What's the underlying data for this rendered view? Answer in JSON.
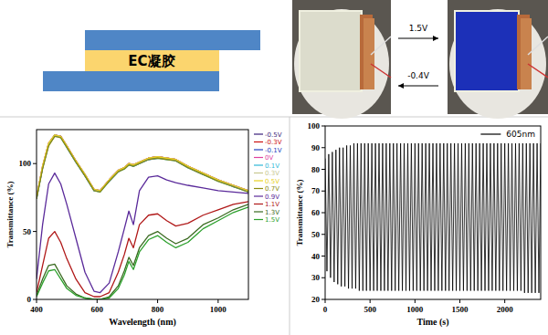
{
  "diagram": {
    "gel_label": "EC凝胶"
  },
  "photos": {
    "forward_label": "1.5V",
    "reverse_label": "-0.4V"
  },
  "chart_data": [
    {
      "type": "line",
      "x_label": "Wavelength (nm)",
      "y_label": "Transmittance (%)",
      "x": [
        400,
        420,
        440,
        460,
        480,
        500,
        530,
        560,
        590,
        610,
        640,
        670,
        690,
        705,
        720,
        740,
        770,
        800,
        830,
        860,
        900,
        950,
        1000,
        1050,
        1100
      ],
      "xlim": [
        400,
        1100
      ],
      "ylim": [
        0,
        125
      ],
      "xticks": [
        400,
        600,
        800,
        1000
      ],
      "yticks": [
        0,
        50,
        100
      ],
      "grid": false,
      "legend": "right",
      "series": [
        {
          "name": "-0.5V",
          "color": "#3a1f7a",
          "values": [
            75,
            97,
            114,
            121,
            120,
            113,
            102,
            92,
            81,
            80,
            88,
            95,
            97,
            100,
            99,
            101,
            104,
            105,
            104,
            103,
            98,
            93,
            88,
            84,
            80
          ]
        },
        {
          "name": "-0.3V",
          "color": "#cc1111",
          "values": [
            75,
            98,
            115,
            121,
            120,
            113,
            102,
            91,
            81,
            80,
            88,
            95,
            97,
            100,
            99,
            101,
            104,
            105,
            104,
            103,
            98,
            93,
            88,
            84,
            80
          ]
        },
        {
          "name": "-0.1V",
          "color": "#2040c0",
          "values": [
            74,
            97,
            114,
            120,
            120,
            112,
            101,
            91,
            80,
            80,
            87,
            94,
            97,
            99,
            98,
            100,
            103,
            104,
            104,
            102,
            97,
            92,
            88,
            83,
            80
          ]
        },
        {
          "name": "0V",
          "color": "#e040a0",
          "values": [
            75,
            98,
            115,
            121,
            120,
            113,
            102,
            92,
            81,
            80,
            88,
            95,
            97,
            100,
            99,
            101,
            104,
            105,
            104,
            103,
            98,
            93,
            88,
            84,
            80
          ]
        },
        {
          "name": "0.1V",
          "color": "#30b8d8",
          "values": [
            74,
            97,
            114,
            121,
            119,
            112,
            101,
            91,
            80,
            79,
            87,
            94,
            96,
            99,
            98,
            100,
            103,
            104,
            103,
            102,
            97,
            92,
            87,
            83,
            79
          ]
        },
        {
          "name": "0.3V",
          "color": "#c8c890",
          "values": [
            75,
            98,
            115,
            121,
            120,
            113,
            102,
            92,
            81,
            80,
            88,
            95,
            97,
            100,
            99,
            101,
            104,
            105,
            104,
            103,
            98,
            93,
            88,
            84,
            80
          ]
        },
        {
          "name": "0.5V",
          "color": "#e8d020",
          "values": [
            75,
            98,
            115,
            121,
            120,
            113,
            102,
            92,
            81,
            80,
            88,
            95,
            97,
            100,
            99,
            101,
            104,
            105,
            104,
            103,
            98,
            93,
            88,
            84,
            80
          ]
        },
        {
          "name": "0.7V",
          "color": "#8a8a10",
          "values": [
            74,
            96,
            113,
            120,
            119,
            112,
            101,
            91,
            80,
            79,
            87,
            94,
            96,
            99,
            98,
            100,
            103,
            104,
            103,
            102,
            97,
            92,
            87,
            83,
            79
          ]
        },
        {
          "name": "0.9V",
          "color": "#5a2a9a",
          "values": [
            15,
            55,
            85,
            93,
            85,
            70,
            45,
            20,
            6,
            5,
            12,
            35,
            52,
            65,
            55,
            80,
            90,
            91,
            88,
            86,
            84,
            82,
            80,
            79,
            78
          ]
        },
        {
          "name": "1.1V",
          "color": "#b01818",
          "values": [
            5,
            25,
            45,
            50,
            42,
            30,
            15,
            5,
            2,
            2,
            5,
            20,
            33,
            45,
            38,
            55,
            62,
            63,
            58,
            54,
            56,
            62,
            66,
            70,
            72
          ]
        },
        {
          "name": "1.3V",
          "color": "#3a6a20",
          "values": [
            3,
            15,
            25,
            26,
            18,
            10,
            4,
            1,
            0,
            0,
            2,
            10,
            21,
            31,
            25,
            38,
            47,
            50,
            45,
            41,
            45,
            55,
            60,
            66,
            70
          ]
        },
        {
          "name": "1.5V",
          "color": "#2ca02c",
          "values": [
            2,
            12,
            21,
            22,
            15,
            8,
            3,
            1,
            0,
            0,
            1,
            8,
            18,
            28,
            22,
            35,
            44,
            47,
            42,
            38,
            42,
            52,
            58,
            64,
            68
          ]
        }
      ]
    },
    {
      "type": "line",
      "x_label": "Time (s)",
      "y_label": "Transmittance (%)",
      "x": [
        0,
        20,
        40,
        60,
        80,
        100,
        120,
        140,
        160,
        180,
        200,
        220,
        240,
        260,
        280,
        300,
        320,
        340,
        360,
        380,
        400,
        420,
        440,
        460,
        480,
        500,
        520,
        540,
        560,
        580,
        600,
        620,
        640,
        660,
        680,
        700,
        720,
        740,
        760,
        780,
        800,
        820,
        840,
        860,
        880,
        900,
        920,
        940,
        960,
        980,
        1000,
        1020,
        1040,
        1060,
        1080,
        1100,
        1120,
        1140,
        1160,
        1180,
        1200,
        1220,
        1240,
        1260,
        1280,
        1300,
        1320,
        1340,
        1360,
        1380,
        1400,
        1420,
        1440,
        1460,
        1480,
        1500,
        1520,
        1540,
        1560,
        1580,
        1600,
        1620,
        1640,
        1660,
        1680,
        1700,
        1720,
        1740,
        1760,
        1780,
        1800,
        1820,
        1840,
        1860,
        1880,
        1900,
        1920,
        1940,
        1960,
        1980,
        2000,
        2020,
        2040,
        2060,
        2080,
        2100,
        2120,
        2140,
        2160,
        2180,
        2200,
        2220,
        2240,
        2260,
        2280,
        2300,
        2320,
        2340,
        2360,
        2380,
        2400
      ],
      "xlim": [
        0,
        2400
      ],
      "ylim": [
        20,
        100
      ],
      "xticks": [
        0,
        500,
        1000,
        1500,
        2000
      ],
      "yticks": [
        20,
        30,
        40,
        50,
        60,
        70,
        80,
        90,
        100
      ],
      "grid": false,
      "legend": "upper right",
      "series": [
        {
          "name": "605nm",
          "color": "#000000",
          "values": [
            85,
            33,
            87,
            30,
            88,
            28,
            89,
            27,
            90,
            26,
            90,
            26,
            91,
            25,
            91,
            25,
            92,
            25,
            92,
            24,
            92,
            24,
            92,
            24,
            92,
            24,
            92,
            24,
            92,
            24,
            92,
            24,
            92,
            24,
            92,
            24,
            92,
            24,
            92,
            24,
            92,
            24,
            92,
            24,
            92,
            24,
            92,
            24,
            92,
            24,
            92,
            24,
            92,
            24,
            92,
            24,
            92,
            24,
            92,
            24,
            92,
            24,
            92,
            24,
            92,
            24,
            92,
            24,
            92,
            24,
            92,
            24,
            92,
            24,
            92,
            24,
            92,
            24,
            92,
            24,
            92,
            24,
            92,
            24,
            92,
            24,
            92,
            24,
            92,
            24,
            92,
            24,
            92,
            24,
            92,
            24,
            92,
            24,
            92,
            24,
            92,
            24,
            92,
            24,
            92,
            24,
            92,
            24,
            92,
            24,
            92,
            23,
            92,
            23,
            92,
            23,
            92,
            23,
            92,
            23,
            92
          ]
        }
      ]
    }
  ]
}
